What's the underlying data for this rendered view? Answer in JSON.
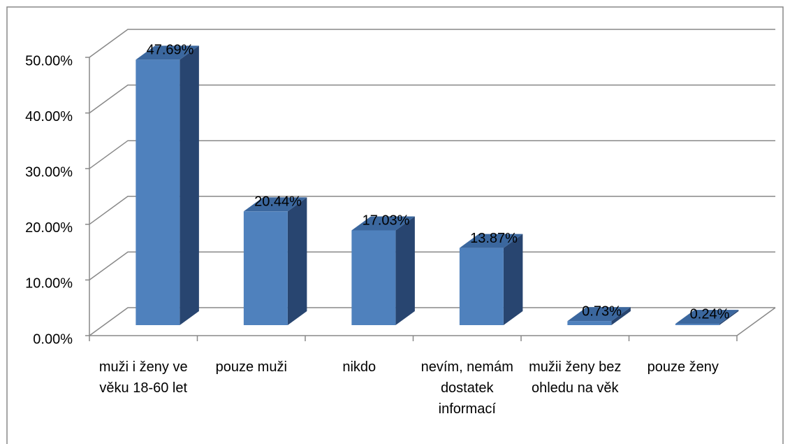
{
  "chart_data": {
    "type": "bar3d",
    "categories": [
      "muži i ženy ve věku 18-60 let",
      "pouze muži",
      "nikdo",
      "nevím, nemám dostatek informací",
      "mužii ženy bez ohledu na věk",
      "pouze ženy"
    ],
    "values": [
      47.69,
      20.44,
      17.03,
      13.87,
      0.73,
      0.24
    ],
    "value_labels": [
      "47.69%",
      "20.44%",
      "17.03%",
      "13.87%",
      "0.73%",
      "0.24%"
    ],
    "color": "#4f81bd",
    "ylim": [
      0,
      50
    ],
    "yticks": [
      {
        "value": 0,
        "label": "0.00%"
      },
      {
        "value": 10,
        "label": "10.00%"
      },
      {
        "value": 20,
        "label": "20.00%"
      },
      {
        "value": 30,
        "label": "30.00%"
      },
      {
        "value": 40,
        "label": "40.00%"
      },
      {
        "value": 50,
        "label": "50.00%"
      }
    ],
    "grid": true
  }
}
